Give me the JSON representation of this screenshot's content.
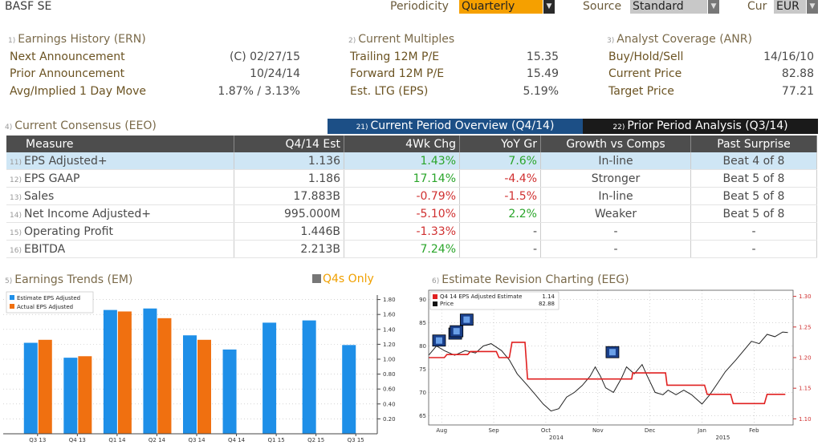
{
  "header": {
    "ticker": "BASF SE",
    "periodicity_label": "Periodicity",
    "periodicity_value": "Quarterly",
    "source_label": "Source",
    "source_value": "Standard",
    "cur_label": "Cur",
    "cur_value": "EUR"
  },
  "earnings_history": {
    "num": "1)",
    "title": "Earnings History (ERN)",
    "rows": [
      {
        "label": "Next Announcement",
        "value": "(C)  02/27/15"
      },
      {
        "label": "Prior Announcement",
        "value": "10/24/14"
      },
      {
        "label": "Avg/Implied 1 Day Move",
        "value": "1.87% / 3.13%"
      }
    ]
  },
  "current_multiples": {
    "num": "2)",
    "title": "Current Multiples",
    "rows": [
      {
        "label": "Trailing 12M P/E",
        "value": "15.35"
      },
      {
        "label": "Forward 12M P/E",
        "value": "15.49"
      },
      {
        "label": "Est. LTG (EPS)",
        "value": "5.19%"
      }
    ]
  },
  "analyst_coverage": {
    "num": "3)",
    "title": "Analyst Coverage (ANR)",
    "rows": [
      {
        "label": "Buy/Hold/Sell",
        "value": "14/16/10"
      },
      {
        "label": "Current Price",
        "value": "82.88"
      },
      {
        "label": "Target Price",
        "value": "77.21"
      }
    ]
  },
  "consensus": {
    "num": "4)",
    "title": "Current Consensus (EEO)",
    "tab1_num": "21)",
    "tab1": "Current Period Overview (Q4/14)",
    "tab2_num": "22)",
    "tab2": "Prior Period Analysis (Q3/14)",
    "headers": [
      "Measure",
      "Q4/14 Est",
      "4Wk Chg",
      "YoY Gr",
      "Growth vs Comps",
      "Past Surprise"
    ],
    "rows": [
      {
        "num": "11)",
        "measure": "EPS Adjusted+",
        "est": "1.136",
        "chg": "1.43%",
        "chg_dir": "pos",
        "yoy": "7.6%",
        "yoy_dir": "pos",
        "comp": "In-line",
        "surp": "Beat 4 of 8"
      },
      {
        "num": "12)",
        "measure": "EPS GAAP",
        "est": "1.186",
        "chg": "17.14%",
        "chg_dir": "pos",
        "yoy": "-4.4%",
        "yoy_dir": "neg",
        "comp": "Stronger",
        "surp": "Beat 5 of 8"
      },
      {
        "num": "13)",
        "measure": "Sales",
        "est": "17.883B",
        "chg": "-0.79%",
        "chg_dir": "neg",
        "yoy": "-1.5%",
        "yoy_dir": "neg",
        "comp": "In-line",
        "surp": "Beat 5 of 8"
      },
      {
        "num": "14)",
        "measure": "Net Income Adjusted+",
        "est": "995.000M",
        "chg": "-5.10%",
        "chg_dir": "neg",
        "yoy": "2.2%",
        "yoy_dir": "pos",
        "comp": "Weaker",
        "surp": "Beat 5 of 8"
      },
      {
        "num": "15)",
        "measure": "Operating Profit",
        "est": "1.446B",
        "chg": "-1.33%",
        "chg_dir": "neg",
        "yoy": "-",
        "yoy_dir": "",
        "comp": "-",
        "surp": "-"
      },
      {
        "num": "16)",
        "measure": "EBITDA",
        "est": "2.213B",
        "chg": "7.24%",
        "chg_dir": "pos",
        "yoy": "-",
        "yoy_dir": "",
        "comp": "-",
        "surp": "-"
      }
    ]
  },
  "earnings_trends": {
    "num": "5)",
    "title": "Earnings Trends (EM)",
    "q4s_only": "Q4s Only",
    "legend": [
      "Estimate EPS Adjusted",
      "Actual EPS Adjusted"
    ],
    "colors": {
      "estimate": "#1e8fe8",
      "actual": "#f07010"
    },
    "chart_data": {
      "type": "bar",
      "categories": [
        "Q3 13",
        "Q4 13",
        "Q1 14",
        "Q2 14",
        "Q3 14",
        "Q4 14",
        "Q1 15",
        "Q2 15",
        "Q3 15"
      ],
      "series": [
        {
          "name": "Estimate EPS Adjusted",
          "values": [
            1.22,
            1.02,
            1.66,
            1.68,
            1.32,
            1.13,
            1.49,
            1.52,
            1.19
          ]
        },
        {
          "name": "Actual EPS Adjusted",
          "values": [
            1.26,
            1.04,
            1.64,
            1.55,
            1.26,
            null,
            null,
            null,
            null
          ]
        }
      ],
      "yticks": [
        "0.20",
        "0.40",
        "0.60",
        "0.80",
        "1.00",
        "1.20",
        "1.40",
        "1.60",
        "1.80"
      ],
      "ylim": [
        0,
        1.86
      ]
    }
  },
  "estimate_revision": {
    "num": "6)",
    "title": "Estimate Revision Charting (EEG)",
    "legend": [
      {
        "label": "Q4 14 EPS Adjusted Estimate",
        "value": "1.14",
        "color": "#e02020"
      },
      {
        "label": "Price",
        "value": "82.88",
        "color": "#111111"
      }
    ],
    "chart_data": {
      "type": "line",
      "xticks": [
        "Aug",
        "Sep",
        "Oct",
        "Nov",
        "Dec",
        "Jan",
        "Feb"
      ],
      "years": [
        "2014",
        "2015"
      ],
      "left_yticks": [
        "65",
        "70",
        "75",
        "80",
        "85",
        "90"
      ],
      "right_yticks": [
        "1.10",
        "1.15",
        "1.20",
        "1.25",
        "1.30"
      ],
      "left_ylim": [
        63,
        92
      ],
      "right_ylim": [
        1.09,
        1.31
      ],
      "events": [
        {
          "x": 0.2,
          "y": 81
        },
        {
          "x": 0.51,
          "y": 82.5
        },
        {
          "x": 0.535,
          "y": 83
        },
        {
          "x": 0.73,
          "y": 85.5
        },
        {
          "x": 3.53,
          "y": 78.5
        }
      ],
      "estimate": [
        [
          0,
          1.2
        ],
        [
          0.3,
          1.2
        ],
        [
          0.35,
          1.205
        ],
        [
          0.75,
          1.205
        ],
        [
          0.8,
          1.21
        ],
        [
          1.3,
          1.21
        ],
        [
          1.35,
          1.2
        ],
        [
          1.55,
          1.2
        ],
        [
          1.6,
          1.225
        ],
        [
          1.85,
          1.225
        ],
        [
          1.9,
          1.165
        ],
        [
          2.7,
          1.165
        ],
        [
          3.9,
          1.165
        ],
        [
          3.92,
          1.175
        ],
        [
          4.3,
          1.175
        ],
        [
          4.35,
          1.175
        ],
        [
          4.55,
          1.175
        ],
        [
          4.58,
          1.155
        ],
        [
          5.3,
          1.155
        ],
        [
          5.35,
          1.14
        ],
        [
          5.8,
          1.14
        ],
        [
          5.85,
          1.125
        ],
        [
          6.45,
          1.125
        ],
        [
          6.5,
          1.14
        ],
        [
          6.85,
          1.14
        ]
      ],
      "price": [
        [
          0,
          78
        ],
        [
          0.15,
          80
        ],
        [
          0.3,
          79
        ],
        [
          0.5,
          78
        ],
        [
          0.7,
          79
        ],
        [
          0.9,
          78.5
        ],
        [
          1.05,
          80
        ],
        [
          1.2,
          80.5
        ],
        [
          1.4,
          79
        ],
        [
          1.55,
          77
        ],
        [
          1.7,
          74
        ],
        [
          1.9,
          71.5
        ],
        [
          2.05,
          69.5
        ],
        [
          2.2,
          67.5
        ],
        [
          2.35,
          66
        ],
        [
          2.5,
          66.5
        ],
        [
          2.65,
          69
        ],
        [
          2.8,
          70
        ],
        [
          2.95,
          71.5
        ],
        [
          3.1,
          73.5
        ],
        [
          3.2,
          75.5
        ],
        [
          3.3,
          73.5
        ],
        [
          3.4,
          71
        ],
        [
          3.55,
          70
        ],
        [
          3.7,
          73
        ],
        [
          3.8,
          75.5
        ],
        [
          3.95,
          74
        ],
        [
          4.1,
          76
        ],
        [
          4.2,
          73.5
        ],
        [
          4.35,
          70
        ],
        [
          4.5,
          69.5
        ],
        [
          4.6,
          70.5
        ],
        [
          4.75,
          69.5
        ],
        [
          4.9,
          70.5
        ],
        [
          5.05,
          69.5
        ],
        [
          5.25,
          67.5
        ],
        [
          5.4,
          69.5
        ],
        [
          5.55,
          72
        ],
        [
          5.7,
          74.5
        ],
        [
          5.9,
          77
        ],
        [
          6.05,
          79
        ],
        [
          6.2,
          81
        ],
        [
          6.35,
          80.5
        ],
        [
          6.5,
          82.5
        ],
        [
          6.65,
          82
        ],
        [
          6.8,
          83
        ],
        [
          6.9,
          82.88
        ]
      ]
    }
  }
}
